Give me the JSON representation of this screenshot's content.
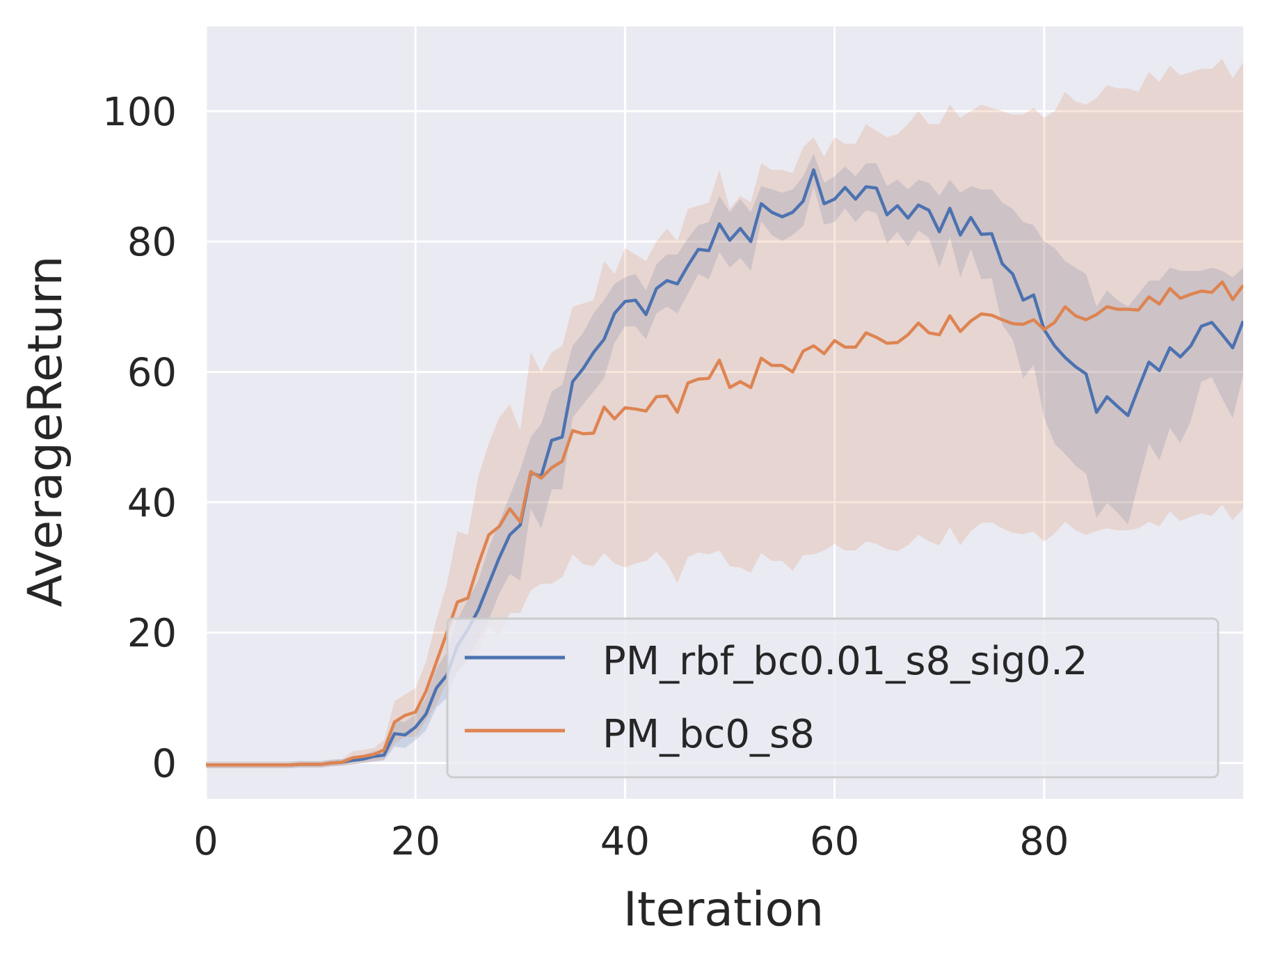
{
  "chart_data": {
    "type": "line",
    "xlabel": "Iteration",
    "ylabel": "AverageReturn",
    "xlim": [
      0,
      99
    ],
    "ylim": [
      -5.5,
      113
    ],
    "xticks": [
      0,
      20,
      40,
      60,
      80
    ],
    "yticks": [
      0,
      20,
      40,
      60,
      80,
      100
    ],
    "grid": true,
    "legend_position": "lower-right",
    "x": [
      0,
      1,
      2,
      3,
      4,
      5,
      6,
      7,
      8,
      9,
      10,
      11,
      12,
      13,
      14,
      15,
      16,
      17,
      18,
      19,
      20,
      21,
      22,
      23,
      24,
      25,
      26,
      27,
      28,
      29,
      30,
      31,
      32,
      33,
      34,
      35,
      36,
      37,
      38,
      39,
      40,
      41,
      42,
      43,
      44,
      45,
      46,
      47,
      48,
      49,
      50,
      51,
      52,
      53,
      54,
      55,
      56,
      57,
      58,
      59,
      60,
      61,
      62,
      63,
      64,
      65,
      66,
      67,
      68,
      69,
      70,
      71,
      72,
      73,
      74,
      75,
      76,
      77,
      78,
      79,
      80,
      81,
      82,
      83,
      84,
      85,
      86,
      87,
      88,
      89,
      90,
      91,
      92,
      93,
      94,
      95,
      96,
      97,
      98,
      99
    ],
    "series": [
      {
        "name": "PM_rbf_bc0.01_s8_sig0.2",
        "color": "#4c72b0",
        "values": [
          -0.3,
          -0.3,
          -0.3,
          -0.3,
          -0.3,
          -0.3,
          -0.3,
          -0.3,
          -0.3,
          -0.2,
          -0.2,
          -0.2,
          0.0,
          0.1,
          0.4,
          0.6,
          1.0,
          1.2,
          4.5,
          4.3,
          5.5,
          7.5,
          11.5,
          13.5,
          18.0,
          20.5,
          23.5,
          27.5,
          31.5,
          35.0,
          36.5,
          44.5,
          44.0,
          49.5,
          50.0,
          58.5,
          60.5,
          63.0,
          65.0,
          69.0,
          70.8,
          71.0,
          68.8,
          72.8,
          74.0,
          73.5,
          76.3,
          78.8,
          78.6,
          82.7,
          80.2,
          82.0,
          80.0,
          85.8,
          84.5,
          83.8,
          84.5,
          86.2,
          91.0,
          85.8,
          86.5,
          88.3,
          86.5,
          88.4,
          88.2,
          84.1,
          85.5,
          83.6,
          85.6,
          84.8,
          81.5,
          85.1,
          81.0,
          83.7,
          81.1,
          81.2,
          76.6,
          75.0,
          71.0,
          71.8,
          66.5,
          64.0,
          62.2,
          60.8,
          59.7,
          53.8,
          56.2,
          54.7,
          53.3,
          57.5,
          61.5,
          60.2,
          63.7,
          62.3,
          64.0,
          67.0,
          67.6,
          65.7,
          63.7,
          67.8
        ],
        "upper": [
          0.2,
          0.2,
          0.2,
          0.2,
          0.2,
          0.2,
          0.2,
          0.2,
          0.2,
          0.3,
          0.3,
          0.3,
          0.5,
          0.6,
          1.0,
          1.2,
          1.8,
          2.0,
          6.5,
          6.3,
          7.5,
          10.0,
          14.5,
          17.0,
          22.0,
          25.0,
          28.0,
          33.0,
          37.0,
          41.0,
          45.0,
          50.0,
          52.0,
          57.0,
          58.0,
          64.0,
          66.0,
          69.0,
          71.0,
          73.5,
          74.5,
          75.0,
          72.5,
          76.5,
          78.0,
          78.0,
          80.5,
          82.5,
          83.0,
          87.0,
          84.5,
          86.5,
          84.5,
          88.5,
          88.0,
          87.5,
          88.0,
          90.0,
          93.5,
          89.0,
          90.0,
          91.5,
          90.0,
          92.0,
          92.0,
          88.5,
          89.5,
          88.0,
          89.5,
          89.0,
          87.0,
          89.5,
          87.5,
          88.5,
          88.0,
          88.0,
          86.0,
          85.0,
          83.0,
          82.5,
          80.0,
          79.0,
          77.0,
          76.0,
          75.0,
          70.0,
          72.5,
          71.0,
          70.0,
          72.0,
          74.0,
          74.0,
          76.0,
          75.5,
          75.5,
          75.5,
          76.0,
          75.5,
          74.5,
          76.0
        ],
        "lower": [
          -0.8,
          -0.8,
          -0.8,
          -0.8,
          -0.8,
          -0.8,
          -0.8,
          -0.8,
          -0.8,
          -0.7,
          -0.7,
          -0.7,
          -0.5,
          -0.4,
          -0.2,
          0.0,
          0.2,
          0.4,
          2.5,
          2.3,
          3.5,
          5.0,
          8.5,
          10.0,
          14.0,
          16.0,
          19.0,
          22.0,
          26.0,
          29.0,
          28.0,
          39.0,
          36.0,
          42.0,
          42.0,
          53.0,
          55.0,
          57.0,
          59.0,
          64.5,
          67.0,
          67.0,
          65.0,
          69.0,
          70.0,
          69.0,
          72.0,
          75.0,
          74.2,
          78.4,
          76.0,
          77.5,
          75.5,
          83.1,
          81.0,
          80.1,
          81.0,
          82.4,
          88.5,
          82.6,
          83.0,
          85.1,
          83.0,
          84.8,
          84.4,
          79.7,
          81.5,
          79.2,
          81.7,
          80.6,
          76.0,
          80.7,
          74.5,
          78.9,
          74.2,
          74.4,
          67.2,
          65.0,
          59.0,
          61.1,
          53.0,
          49.0,
          47.4,
          45.6,
          44.4,
          37.6,
          39.9,
          38.4,
          36.6,
          43.0,
          49.0,
          46.4,
          51.4,
          49.1,
          52.5,
          58.5,
          59.2,
          55.9,
          52.9,
          59.6
        ]
      },
      {
        "name": "PM_bc0_s8",
        "color": "#dd8452",
        "values": [
          -0.3,
          -0.3,
          -0.3,
          -0.3,
          -0.3,
          -0.3,
          -0.3,
          -0.3,
          -0.3,
          -0.2,
          -0.2,
          -0.2,
          0.0,
          0.1,
          0.8,
          1.0,
          1.3,
          2.0,
          6.3,
          7.3,
          7.8,
          11.0,
          15.5,
          20.0,
          24.7,
          25.3,
          30.5,
          35.0,
          36.3,
          39.0,
          37.0,
          44.7,
          43.7,
          45.3,
          46.3,
          51.0,
          50.5,
          50.6,
          54.6,
          52.8,
          54.5,
          54.3,
          54.0,
          56.2,
          56.3,
          53.8,
          58.3,
          58.9,
          59.0,
          61.8,
          57.6,
          58.5,
          57.6,
          62.1,
          61.0,
          61.0,
          60.0,
          63.2,
          64.0,
          62.8,
          64.8,
          63.8,
          63.8,
          66.0,
          65.3,
          64.4,
          64.5,
          65.7,
          67.5,
          66.0,
          65.7,
          68.6,
          66.2,
          67.8,
          68.9,
          68.7,
          68.0,
          67.4,
          67.3,
          68.0,
          66.5,
          67.6,
          70.0,
          68.6,
          68.0,
          68.8,
          70.0,
          69.6,
          69.6,
          69.5,
          71.5,
          70.4,
          72.8,
          71.3,
          71.9,
          72.4,
          72.2,
          73.8,
          71.1,
          73.3
        ],
        "upper": [
          0.2,
          0.2,
          0.2,
          0.2,
          0.2,
          0.2,
          0.2,
          0.2,
          0.2,
          0.3,
          0.3,
          0.3,
          0.5,
          0.6,
          1.8,
          2.0,
          2.3,
          3.5,
          9.5,
          10.5,
          11.5,
          15.5,
          22.0,
          27.5,
          35.5,
          35.0,
          44.0,
          49.0,
          53.0,
          55.0,
          51.0,
          63.0,
          60.0,
          63.0,
          64.0,
          70.0,
          70.5,
          71.0,
          77.0,
          75.0,
          79.0,
          78.0,
          77.0,
          80.0,
          82.0,
          80.0,
          85.0,
          85.5,
          86.0,
          91.0,
          85.0,
          87.0,
          86.0,
          92.0,
          91.0,
          91.0,
          90.5,
          94.5,
          96.0,
          93.0,
          96.0,
          95.0,
          95.0,
          98.0,
          97.0,
          96.0,
          96.5,
          98.0,
          100.0,
          98.0,
          98.0,
          101.0,
          99.0,
          100.0,
          101.0,
          100.5,
          100.0,
          99.5,
          99.5,
          100.5,
          99.0,
          100.0,
          103.0,
          101.5,
          101.0,
          102.0,
          104.0,
          103.5,
          103.5,
          103.0,
          106.0,
          104.5,
          107.0,
          105.5,
          106.0,
          106.5,
          106.5,
          108.0,
          105.0,
          107.5
        ],
        "lower": [
          -0.8,
          -0.8,
          -0.8,
          -0.8,
          -0.8,
          -0.8,
          -0.8,
          -0.8,
          -0.8,
          -0.7,
          -0.7,
          -0.7,
          -0.5,
          -0.4,
          -0.2,
          0.0,
          0.3,
          0.5,
          3.0,
          4.0,
          4.0,
          6.5,
          9.0,
          12.5,
          14.0,
          15.5,
          17.0,
          21.0,
          19.5,
          23.0,
          23.0,
          26.5,
          27.5,
          27.5,
          28.5,
          32.0,
          30.5,
          30.2,
          32.2,
          30.6,
          30.0,
          30.6,
          31.0,
          32.4,
          30.6,
          27.6,
          31.6,
          32.3,
          32.0,
          32.6,
          30.2,
          30.0,
          29.2,
          32.2,
          31.0,
          31.0,
          29.5,
          31.9,
          32.0,
          32.6,
          33.6,
          32.6,
          32.6,
          34.0,
          33.6,
          32.8,
          32.5,
          33.4,
          35.0,
          34.0,
          33.4,
          36.2,
          33.4,
          35.6,
          36.8,
          36.9,
          36.0,
          35.3,
          35.1,
          35.5,
          34.0,
          35.2,
          37.0,
          35.7,
          35.0,
          35.6,
          36.0,
          35.7,
          35.7,
          36.0,
          37.0,
          36.3,
          38.6,
          37.1,
          37.8,
          38.3,
          37.9,
          39.6,
          37.2,
          39.1
        ]
      }
    ]
  }
}
